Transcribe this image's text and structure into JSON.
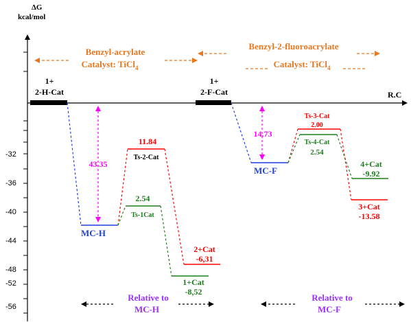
{
  "axis": {
    "y_label_line1": "ΔG",
    "y_label_line2": "kcal/mol",
    "x_label": "R.C",
    "ticks": [
      "-32",
      "-36",
      "-40",
      "-44",
      "-48",
      "-52",
      "-56"
    ]
  },
  "headers": {
    "left_line1": "Benzyl-acrylate",
    "left_line2": "Catalyst: TiCl",
    "left_sub": "4",
    "right_line1": "Benzyl-2-fluoroacrylate",
    "right_line2": "Catalyst: TiCl",
    "right_sub": "4"
  },
  "reactants": {
    "left_line1": "1+",
    "left_line2": "2-H-Cat",
    "right_line1": "1+",
    "right_line2": "2-F-Cat"
  },
  "labels": {
    "mch": "MC-H",
    "mcf": "MC-F",
    "ts2_label": "Ts-2-Cat",
    "ts2_value": "11.84",
    "ts1_label": "Ts-1Cat",
    "ts1_value": "2.54",
    "p2_label": "2+Cat",
    "p2_value": "-6,31",
    "p1_label": "1+Cat",
    "p1_value": "-8,52",
    "ts3_label": "Ts-3-Cat",
    "ts3_value": "2.00",
    "ts4_label": "Ts-4-Cat",
    "ts4_value": "2.54",
    "p4_label": "4+Cat",
    "p4_value": "-9.92",
    "p3_label": "3+Cat",
    "p3_value": "-13.58"
  },
  "energies": {
    "left_binding": "43.35",
    "right_binding": "14.73"
  },
  "footers": {
    "left_line1": "Relative to",
    "left_line2": "MC-H",
    "right_line1": "Relative to",
    "right_line2": "MC-F"
  },
  "colors": {
    "orange": "#e87722",
    "red": "#ff0000",
    "green": "#1a7f1a",
    "blue": "#1f3fe0",
    "magenta": "#ff00ff",
    "purple": "#9b30ff",
    "black": "#000000"
  }
}
